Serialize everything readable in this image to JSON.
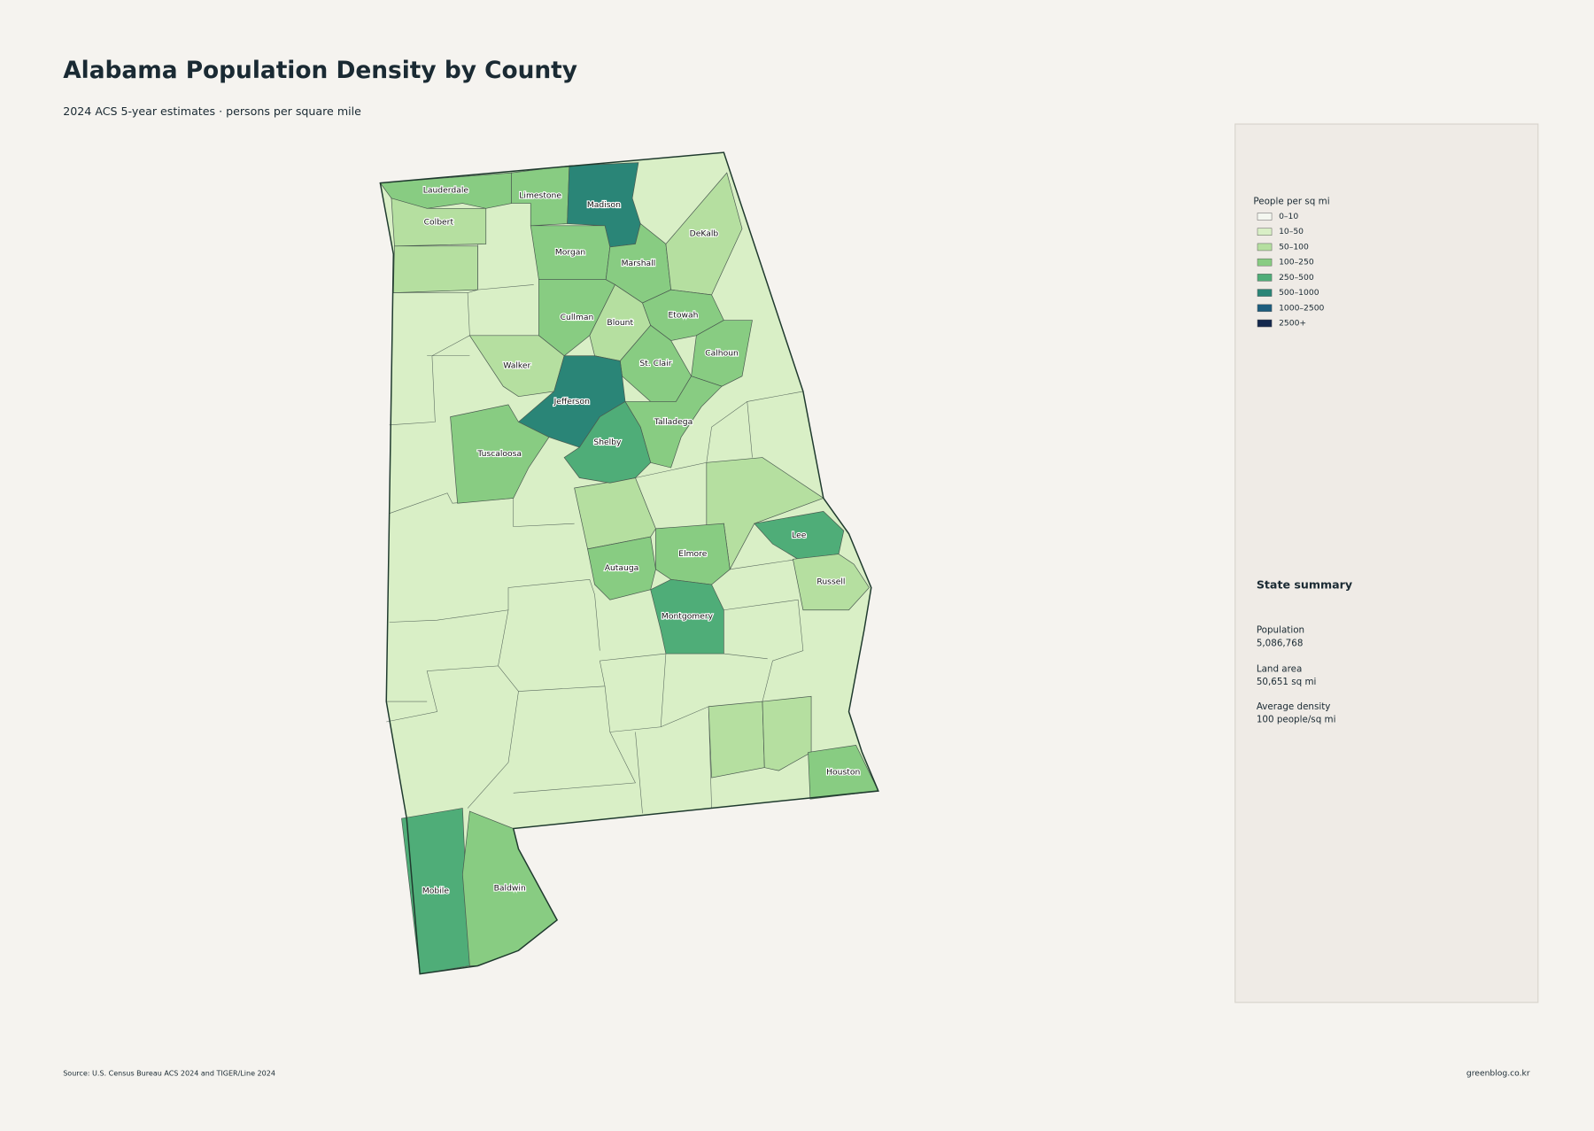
{
  "header": {
    "title": "Alabama Population Density by County",
    "subtitle": "2024 ACS 5-year estimates · persons per square mile"
  },
  "legend": {
    "title": "People per sq mi",
    "items": [
      {
        "label": "0–10",
        "color": "#f4f7f0"
      },
      {
        "label": "10–50",
        "color": "#d9efc6"
      },
      {
        "label": "50–100",
        "color": "#b5dfa0"
      },
      {
        "label": "100–250",
        "color": "#88cc82"
      },
      {
        "label": "250–500",
        "color": "#4fad78"
      },
      {
        "label": "500–1000",
        "color": "#2a8577"
      },
      {
        "label": "1000–2500",
        "color": "#1d5d7e"
      },
      {
        "label": "2500+",
        "color": "#14284d"
      }
    ]
  },
  "counties": [
    {
      "name": "Lauderdale",
      "color": "#88cc82"
    },
    {
      "name": "Colbert",
      "color": "#b5dfa0"
    },
    {
      "name": "Limestone",
      "color": "#88cc82"
    },
    {
      "name": "Madison",
      "color": "#2a8577"
    },
    {
      "name": "Morgan",
      "color": "#88cc82"
    },
    {
      "name": "Marshall",
      "color": "#88cc82"
    },
    {
      "name": "DeKalb",
      "color": "#b5dfa0"
    },
    {
      "name": "Cullman",
      "color": "#88cc82"
    },
    {
      "name": "Blount",
      "color": "#b5dfa0"
    },
    {
      "name": "Etowah",
      "color": "#88cc82"
    },
    {
      "name": "Calhoun",
      "color": "#88cc82"
    },
    {
      "name": "Walker",
      "color": "#b5dfa0"
    },
    {
      "name": "St. Clair",
      "color": "#88cc82"
    },
    {
      "name": "Jefferson",
      "color": "#2a8577"
    },
    {
      "name": "Talladega",
      "color": "#88cc82"
    },
    {
      "name": "Shelby",
      "color": "#4fad78"
    },
    {
      "name": "Tuscaloosa",
      "color": "#88cc82"
    },
    {
      "name": "Elmore",
      "color": "#88cc82"
    },
    {
      "name": "Autauga",
      "color": "#88cc82"
    },
    {
      "name": "Montgomery",
      "color": "#4fad78"
    },
    {
      "name": "Lee",
      "color": "#4fad78"
    },
    {
      "name": "Russell",
      "color": "#b5dfa0"
    },
    {
      "name": "Houston",
      "color": "#88cc82"
    },
    {
      "name": "Mobile",
      "color": "#4fad78"
    },
    {
      "name": "Baldwin",
      "color": "#88cc82"
    }
  ],
  "summary": {
    "title": "State summary",
    "items": [
      {
        "label": "Population",
        "value": "5,086,768"
      },
      {
        "label": "Land area",
        "value": "50,651 sq mi"
      },
      {
        "label": "Average density",
        "value": "100 people/sq mi"
      }
    ]
  },
  "footer": {
    "source": "Source: U.S. Census Bureau ACS 2024 and TIGER/Line 2024",
    "credit": "greenblog.co.kr"
  }
}
